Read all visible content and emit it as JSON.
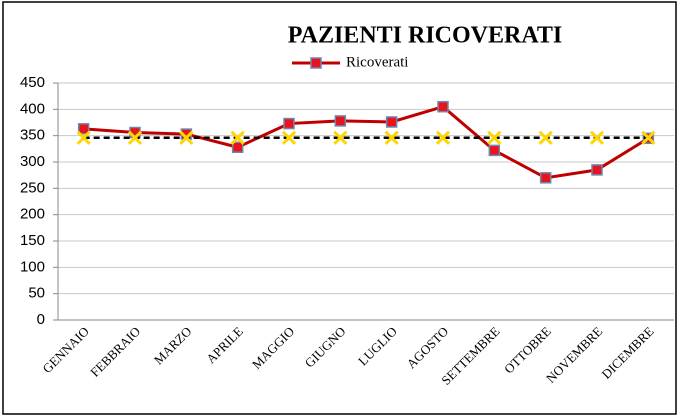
{
  "chart_data": {
    "type": "line",
    "title": "PAZIENTI  RICOVERATI",
    "categories": [
      "GENNAIO",
      "FEBBRAIO",
      "MARZO",
      "APRILE",
      "MAGGIO",
      "GIUGNO",
      "LUGLIO",
      "AGOSTO",
      "SETTEMBRE",
      "OTTOBRE",
      "NOVEMBRE",
      "DICEMBRE"
    ],
    "series": [
      {
        "name": "Ricoverati",
        "color": "#c00000",
        "values": [
          363,
          356,
          353,
          328,
          373,
          378,
          376,
          405,
          322,
          270,
          285,
          345
        ]
      },
      {
        "color": "#000000",
        "values": [
          346,
          346,
          346,
          346,
          346,
          346,
          346,
          346,
          346,
          346,
          346,
          346
        ]
      }
    ],
    "ylim": [
      0,
      450
    ],
    "yticks": [
      0,
      50,
      100,
      150,
      200,
      250,
      300,
      350,
      400,
      450
    ],
    "grid": true
  }
}
